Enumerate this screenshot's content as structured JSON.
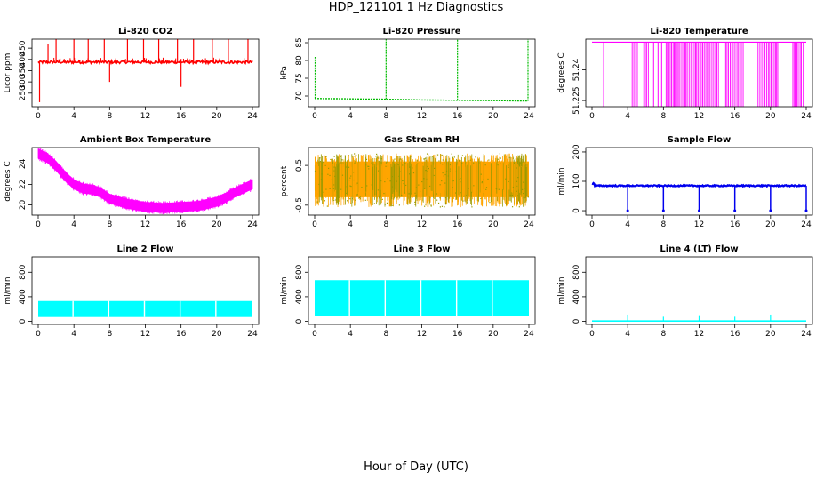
{
  "figure": {
    "title": "HDP_121101  1 Hz Diagnostics",
    "xlabel": "Hour of Day (UTC)"
  },
  "chart_data": [
    {
      "type": "line",
      "title": "Li-820 CO2",
      "ylabel": "Licor ppm",
      "color": "#ff0000",
      "xlim": [
        0,
        24
      ],
      "xticks": [
        0,
        4,
        8,
        12,
        16,
        20,
        24
      ],
      "ylim": [
        190,
        490
      ],
      "yticks": [
        250,
        300,
        350,
        400,
        450
      ],
      "baseline": 388,
      "noise": 6,
      "spikes": [
        {
          "x": 0.15,
          "y": 210
        },
        {
          "x": 1.1,
          "y": 468
        },
        {
          "x": 2.0,
          "y": 490
        },
        {
          "x": 4.0,
          "y": 490
        },
        {
          "x": 5.6,
          "y": 490
        },
        {
          "x": 7.4,
          "y": 490
        },
        {
          "x": 8.0,
          "y": 300
        },
        {
          "x": 10.0,
          "y": 490
        },
        {
          "x": 11.8,
          "y": 490
        },
        {
          "x": 13.5,
          "y": 490
        },
        {
          "x": 15.6,
          "y": 490
        },
        {
          "x": 16.0,
          "y": 278
        },
        {
          "x": 17.4,
          "y": 490
        },
        {
          "x": 19.5,
          "y": 490
        },
        {
          "x": 21.3,
          "y": 490
        },
        {
          "x": 23.5,
          "y": 490
        }
      ]
    },
    {
      "type": "line",
      "title": "Li-820 Pressure",
      "ylabel": "kPa",
      "color": "#00bb00",
      "xlim": [
        0,
        24
      ],
      "xticks": [
        0,
        4,
        8,
        12,
        16,
        20,
        24
      ],
      "ylim": [
        67,
        86
      ],
      "yticks": [
        70,
        75,
        80,
        85
      ],
      "x": [
        0,
        0.3,
        4,
        8,
        12,
        16,
        20,
        23.9
      ],
      "y": [
        69.3,
        69.3,
        69.2,
        69.1,
        68.9,
        68.8,
        68.7,
        68.6
      ],
      "spikes": [
        {
          "x": 0.05,
          "y": 81
        },
        {
          "x": 8.0,
          "y": 86
        },
        {
          "x": 16.0,
          "y": 86
        },
        {
          "x": 23.9,
          "y": 86
        }
      ]
    },
    {
      "type": "line",
      "title": "Li-820 Temperature",
      "ylabel": "degrees C",
      "color": "#ff00ff",
      "xlim": [
        0,
        24
      ],
      "xticks": [
        0,
        4,
        8,
        12,
        16,
        20,
        24
      ],
      "ylim": [
        51.222,
        51.255
      ],
      "yticks": [
        51.225,
        51.24
      ],
      "baseline": 51.2535,
      "low": 51.222,
      "dense_ranges": [
        [
          4.5,
          5.2
        ],
        [
          5.8,
          6.4
        ],
        [
          8.3,
          14.2
        ],
        [
          14.8,
          17.0
        ],
        [
          18.6,
          19.8
        ],
        [
          19.9,
          21.0
        ],
        [
          22.5,
          23.8
        ]
      ],
      "sparse_x": [
        1.3,
        6.9,
        7.4,
        7.8
      ]
    },
    {
      "type": "line",
      "title": "Ambient Box Temperature",
      "ylabel": "degrees C",
      "color": "#ff00ff",
      "xlim": [
        0,
        24
      ],
      "xticks": [
        0,
        4,
        8,
        12,
        16,
        20,
        24
      ],
      "ylim": [
        19,
        25.6
      ],
      "yticks": [
        20,
        22,
        24
      ],
      "x": [
        0,
        1,
        2,
        3,
        4,
        5,
        6,
        7,
        8,
        10,
        12,
        14,
        16,
        18,
        20,
        21,
        22,
        23,
        24
      ],
      "y": [
        25.0,
        24.6,
        23.8,
        22.8,
        22.0,
        21.6,
        21.5,
        21.2,
        20.6,
        20.1,
        19.8,
        19.7,
        19.8,
        19.9,
        20.3,
        20.7,
        21.2,
        21.6,
        22.0
      ],
      "band": 0.45
    },
    {
      "type": "line",
      "title": "Gas Stream RH",
      "ylabel": "percent",
      "color": "#ffa500",
      "line_color": "#9a9a00",
      "xlim": [
        0,
        24
      ],
      "xticks": [
        0,
        4,
        8,
        12,
        16,
        20,
        24
      ],
      "ylim": [
        -0.75,
        0.95
      ],
      "yticks": [
        -0.5,
        0.5
      ],
      "range": [
        -0.55,
        0.8
      ]
    },
    {
      "type": "line",
      "title": "Sample Flow",
      "ylabel": "ml/min",
      "color": "#0000ee",
      "xlim": [
        0,
        24
      ],
      "xticks": [
        0,
        4,
        8,
        12,
        16,
        20,
        24
      ],
      "ylim": [
        -15,
        215
      ],
      "yticks": [
        0,
        100,
        200
      ],
      "baseline": 85,
      "start": 93,
      "dips": [
        4.0,
        8.0,
        12.0,
        16.0,
        20.0,
        24.0
      ]
    },
    {
      "type": "area",
      "title": "Line 2 Flow",
      "ylabel": "ml/min",
      "color": "#00ffff",
      "xlim": [
        0,
        24
      ],
      "xticks": [
        0,
        4,
        8,
        12,
        16,
        20,
        24
      ],
      "ylim": [
        -50,
        1050
      ],
      "yticks": [
        0,
        400,
        800
      ],
      "range": [
        70,
        330
      ],
      "gaps": [
        3.9,
        7.9,
        11.9,
        15.9,
        19.9
      ]
    },
    {
      "type": "area",
      "title": "Line 3 Flow",
      "ylabel": "ml/min",
      "color": "#00ffff",
      "xlim": [
        0,
        24
      ],
      "xticks": [
        0,
        4,
        8,
        12,
        16,
        20,
        24
      ],
      "ylim": [
        -50,
        1050
      ],
      "yticks": [
        0,
        400,
        800
      ],
      "range": [
        90,
        670
      ],
      "gaps": [
        3.9,
        7.9,
        11.9,
        15.9,
        19.9
      ]
    },
    {
      "type": "line",
      "title": "Line 4 (LT) Flow",
      "ylabel": "ml/min",
      "color": "#00ffff",
      "xlim": [
        0,
        24
      ],
      "xticks": [
        0,
        4,
        8,
        12,
        16,
        20,
        24
      ],
      "ylim": [
        -50,
        1050
      ],
      "yticks": [
        0,
        400,
        800
      ],
      "baseline": 5,
      "spikes": [
        {
          "x": 4.0,
          "y": 110
        },
        {
          "x": 8.0,
          "y": 75
        },
        {
          "x": 12.0,
          "y": 100
        },
        {
          "x": 16.0,
          "y": 75
        },
        {
          "x": 20.0,
          "y": 110
        }
      ]
    }
  ]
}
